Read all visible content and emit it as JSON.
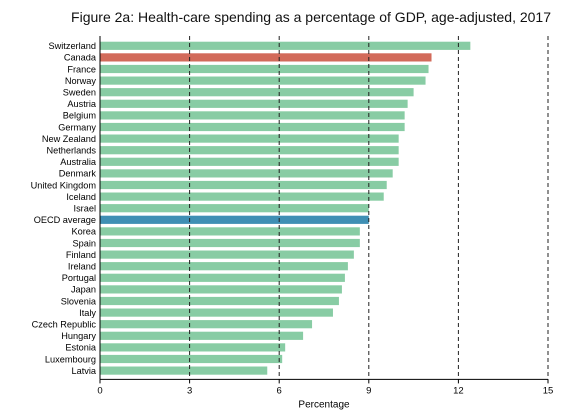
{
  "chart_data": {
    "type": "bar",
    "orientation": "horizontal",
    "title": "Figure 2a: Health-care spending as a percentage of GDP, age-adjusted, 2017",
    "xlabel": "Percentage",
    "ylabel": "",
    "xlim": [
      0,
      15
    ],
    "xticks": [
      0,
      3,
      6,
      9,
      12,
      15
    ],
    "grid": "vertical dashed lines at 3, 6, 9, 12, 15",
    "categories": [
      "Switzerland",
      "Canada",
      "France",
      "Norway",
      "Sweden",
      "Austria",
      "Belgium",
      "Germany",
      "New Zealand",
      "Netherlands",
      "Australia",
      "Denmark",
      "United Kingdom",
      "Iceland",
      "Israel",
      "OECD average",
      "Korea",
      "Spain",
      "Finland",
      "Ireland",
      "Portugal",
      "Japan",
      "Slovenia",
      "Italy",
      "Czech Republic",
      "Hungary",
      "Estonia",
      "Luxembourg",
      "Latvia"
    ],
    "values": [
      12.4,
      11.1,
      11.0,
      10.9,
      10.5,
      10.3,
      10.2,
      10.2,
      10.0,
      10.0,
      10.0,
      9.8,
      9.6,
      9.5,
      9.0,
      9.0,
      8.7,
      8.7,
      8.5,
      8.3,
      8.2,
      8.1,
      8.0,
      7.8,
      7.1,
      6.8,
      6.2,
      6.1,
      5.6
    ],
    "colors": {
      "default": "#88cca4",
      "Canada": "#d26a5a",
      "OECD average": "#3f8fb4"
    }
  }
}
